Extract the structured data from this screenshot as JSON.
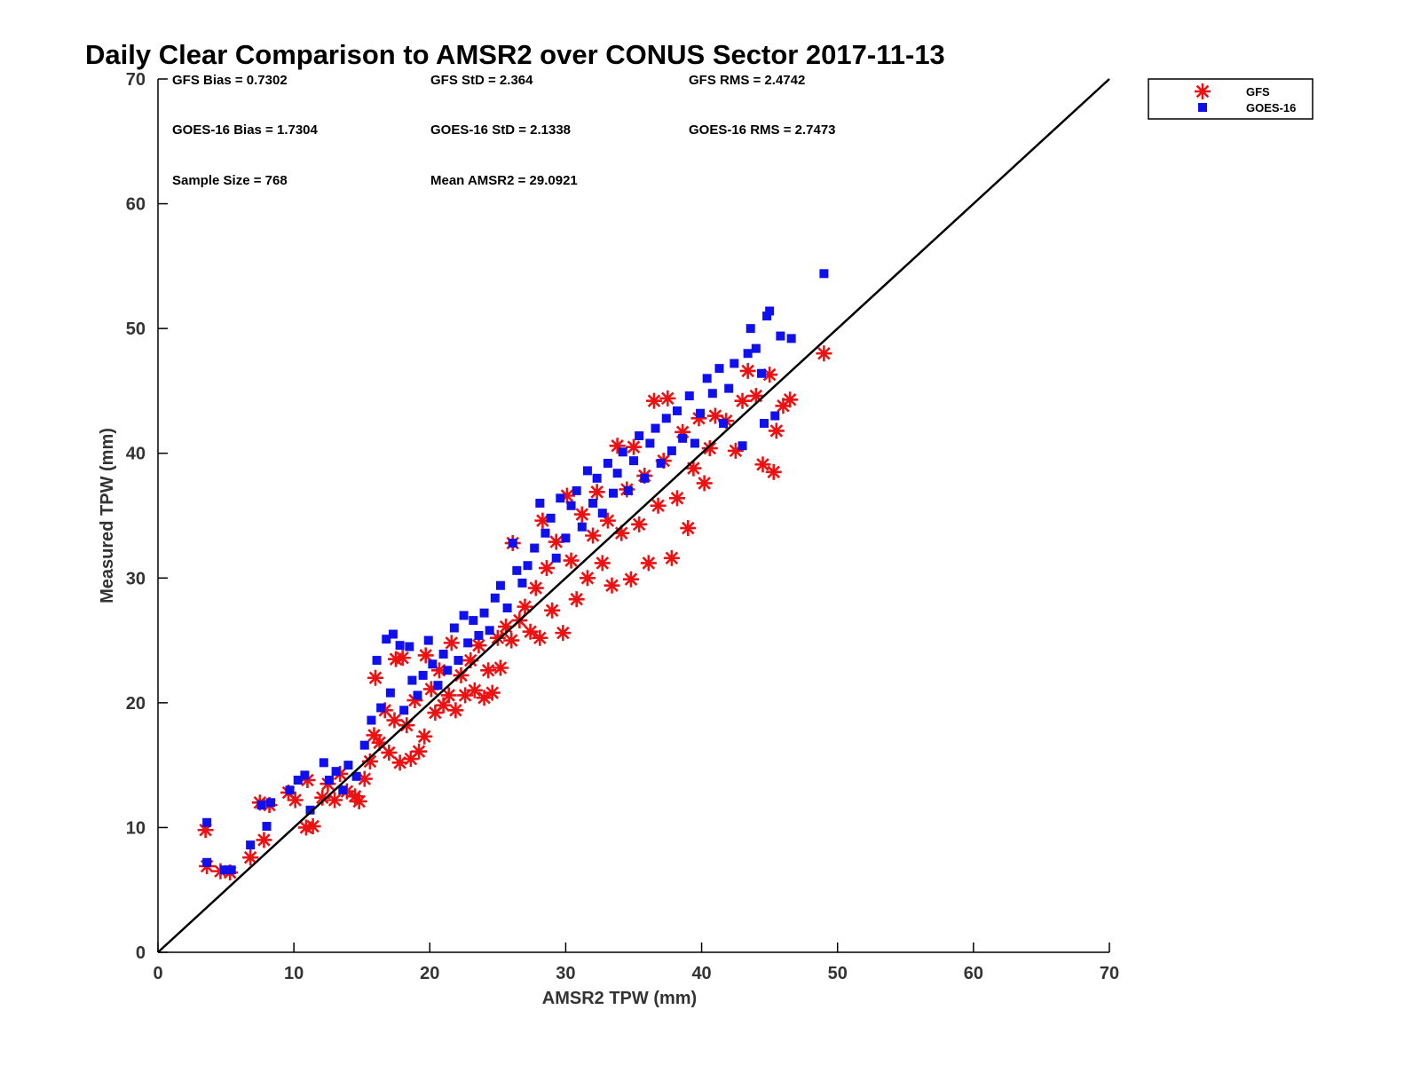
{
  "chart_data": {
    "type": "scatter",
    "title": "Daily Clear Comparison to AMSR2 over CONUS Sector 2017-11-13",
    "xlabel": "AMSR2 TPW (mm)",
    "ylabel": "Measured TPW (mm)",
    "xlim": [
      0,
      70
    ],
    "ylim": [
      0,
      70
    ],
    "xticks": [
      0,
      10,
      20,
      30,
      40,
      50,
      60,
      70
    ],
    "yticks": [
      0,
      10,
      20,
      30,
      40,
      50,
      60,
      70
    ],
    "grid": false,
    "legend_position": "outside top-right",
    "reference_line": {
      "from": [
        0,
        0
      ],
      "to": [
        70,
        70
      ],
      "color": "#000000"
    },
    "stats": [
      "GFS Bias = 0.7302",
      "GFS StD = 2.364",
      "GFS RMS = 2.4742",
      "GOES-16 Bias = 1.7304",
      "GOES-16 StD = 2.1338",
      "GOES-16 RMS = 2.7473",
      "Sample Size = 768",
      "Mean AMSR2 = 29.0921"
    ],
    "series": [
      {
        "name": "GFS",
        "marker": "asterisk",
        "color": "#ee1111",
        "points": [
          [
            3.5,
            9.8
          ],
          [
            3.6,
            6.9
          ],
          [
            4.6,
            6.5
          ],
          [
            5.3,
            6.4
          ],
          [
            6.8,
            7.6
          ],
          [
            7.8,
            9.0
          ],
          [
            7.5,
            12.0
          ],
          [
            8.2,
            11.8
          ],
          [
            9.6,
            12.8
          ],
          [
            10.1,
            12.2
          ],
          [
            10.9,
            10.0
          ],
          [
            11.0,
            13.8
          ],
          [
            11.4,
            10.1
          ],
          [
            12.1,
            12.4
          ],
          [
            12.5,
            13.5
          ],
          [
            13.0,
            12.2
          ],
          [
            13.4,
            14.3
          ],
          [
            13.9,
            12.9
          ],
          [
            14.5,
            12.5
          ],
          [
            14.8,
            12.1
          ],
          [
            15.2,
            13.9
          ],
          [
            15.6,
            15.3
          ],
          [
            15.9,
            17.4
          ],
          [
            16.0,
            22.0
          ],
          [
            16.3,
            16.8
          ],
          [
            16.7,
            19.4
          ],
          [
            17.0,
            16.0
          ],
          [
            17.4,
            18.6
          ],
          [
            17.5,
            23.5
          ],
          [
            17.8,
            15.2
          ],
          [
            18.0,
            23.6
          ],
          [
            18.3,
            18.2
          ],
          [
            18.6,
            15.5
          ],
          [
            18.9,
            20.2
          ],
          [
            19.2,
            16.1
          ],
          [
            19.6,
            17.3
          ],
          [
            19.7,
            23.8
          ],
          [
            20.1,
            21.1
          ],
          [
            20.4,
            19.2
          ],
          [
            20.7,
            22.6
          ],
          [
            21.0,
            19.8
          ],
          [
            21.4,
            20.6
          ],
          [
            21.6,
            24.8
          ],
          [
            21.9,
            19.4
          ],
          [
            22.3,
            22.2
          ],
          [
            22.6,
            20.6
          ],
          [
            23.0,
            23.4
          ],
          [
            23.3,
            21.0
          ],
          [
            23.6,
            24.6
          ],
          [
            24.0,
            20.4
          ],
          [
            24.3,
            22.6
          ],
          [
            24.6,
            20.8
          ],
          [
            25.0,
            25.2
          ],
          [
            25.2,
            22.8
          ],
          [
            25.6,
            26.1
          ],
          [
            26.0,
            25.0
          ],
          [
            26.1,
            32.8
          ],
          [
            26.6,
            26.6
          ],
          [
            27.0,
            27.7
          ],
          [
            27.4,
            25.7
          ],
          [
            27.8,
            29.2
          ],
          [
            28.1,
            25.2
          ],
          [
            28.3,
            34.6
          ],
          [
            28.6,
            30.8
          ],
          [
            29.0,
            27.4
          ],
          [
            29.3,
            32.9
          ],
          [
            29.8,
            25.6
          ],
          [
            30.1,
            36.6
          ],
          [
            30.4,
            31.4
          ],
          [
            30.8,
            28.3
          ],
          [
            31.2,
            35.1
          ],
          [
            31.6,
            30.0
          ],
          [
            32.0,
            33.4
          ],
          [
            32.3,
            36.9
          ],
          [
            32.7,
            31.2
          ],
          [
            33.1,
            34.6
          ],
          [
            33.4,
            29.4
          ],
          [
            33.8,
            40.6
          ],
          [
            34.1,
            33.6
          ],
          [
            34.5,
            37.1
          ],
          [
            34.8,
            29.9
          ],
          [
            35.0,
            40.5
          ],
          [
            35.4,
            34.3
          ],
          [
            35.8,
            38.2
          ],
          [
            36.1,
            31.2
          ],
          [
            36.5,
            44.2
          ],
          [
            36.8,
            35.8
          ],
          [
            37.2,
            39.4
          ],
          [
            37.5,
            44.4
          ],
          [
            37.8,
            31.6
          ],
          [
            38.2,
            36.4
          ],
          [
            38.6,
            41.7
          ],
          [
            39.0,
            34.0
          ],
          [
            39.4,
            38.8
          ],
          [
            39.8,
            42.8
          ],
          [
            40.2,
            37.6
          ],
          [
            40.6,
            40.4
          ],
          [
            41.0,
            43.0
          ],
          [
            41.8,
            42.6
          ],
          [
            42.5,
            40.2
          ],
          [
            43.0,
            44.2
          ],
          [
            43.4,
            46.6
          ],
          [
            44.0,
            44.6
          ],
          [
            44.5,
            39.1
          ],
          [
            45.0,
            46.3
          ],
          [
            45.3,
            38.5
          ],
          [
            45.5,
            41.8
          ],
          [
            46.0,
            43.8
          ],
          [
            46.5,
            44.3
          ],
          [
            49.0,
            48.0
          ]
        ]
      },
      {
        "name": "GOES-16",
        "marker": "square",
        "color": "#1010ee",
        "points": [
          [
            3.6,
            10.4
          ],
          [
            3.6,
            7.2
          ],
          [
            4.9,
            6.6
          ],
          [
            5.4,
            6.6
          ],
          [
            6.8,
            8.6
          ],
          [
            7.6,
            11.8
          ],
          [
            8.0,
            10.1
          ],
          [
            8.3,
            12.0
          ],
          [
            9.7,
            13.0
          ],
          [
            10.3,
            13.8
          ],
          [
            10.8,
            14.2
          ],
          [
            11.2,
            11.4
          ],
          [
            12.2,
            15.2
          ],
          [
            12.6,
            13.8
          ],
          [
            13.1,
            14.5
          ],
          [
            13.6,
            13.0
          ],
          [
            14.0,
            15.0
          ],
          [
            14.6,
            14.1
          ],
          [
            15.2,
            16.6
          ],
          [
            15.7,
            18.6
          ],
          [
            16.1,
            23.4
          ],
          [
            16.4,
            19.6
          ],
          [
            16.8,
            25.1
          ],
          [
            17.1,
            20.8
          ],
          [
            17.3,
            25.5
          ],
          [
            17.8,
            24.6
          ],
          [
            18.1,
            19.4
          ],
          [
            18.5,
            24.5
          ],
          [
            18.7,
            21.8
          ],
          [
            19.1,
            20.6
          ],
          [
            19.5,
            22.2
          ],
          [
            19.9,
            25.0
          ],
          [
            20.2,
            23.1
          ],
          [
            20.6,
            21.4
          ],
          [
            21.0,
            23.9
          ],
          [
            21.3,
            22.6
          ],
          [
            21.8,
            26.0
          ],
          [
            22.1,
            23.4
          ],
          [
            22.5,
            27.0
          ],
          [
            22.8,
            24.8
          ],
          [
            23.2,
            26.6
          ],
          [
            23.6,
            25.4
          ],
          [
            24.0,
            27.2
          ],
          [
            24.4,
            25.8
          ],
          [
            24.8,
            28.4
          ],
          [
            25.2,
            29.4
          ],
          [
            25.7,
            27.6
          ],
          [
            26.1,
            32.8
          ],
          [
            26.4,
            30.6
          ],
          [
            26.8,
            29.6
          ],
          [
            27.2,
            31.0
          ],
          [
            27.7,
            32.4
          ],
          [
            28.1,
            36.0
          ],
          [
            28.5,
            33.6
          ],
          [
            28.9,
            34.8
          ],
          [
            29.3,
            31.6
          ],
          [
            29.6,
            36.4
          ],
          [
            30.0,
            33.2
          ],
          [
            30.4,
            35.8
          ],
          [
            30.8,
            37.0
          ],
          [
            31.2,
            34.1
          ],
          [
            31.6,
            38.6
          ],
          [
            32.0,
            36.0
          ],
          [
            32.3,
            38.0
          ],
          [
            32.7,
            35.2
          ],
          [
            33.1,
            39.2
          ],
          [
            33.5,
            36.8
          ],
          [
            33.8,
            38.4
          ],
          [
            34.2,
            40.1
          ],
          [
            34.6,
            37.0
          ],
          [
            35.0,
            39.4
          ],
          [
            35.4,
            41.4
          ],
          [
            35.8,
            38.0
          ],
          [
            36.2,
            40.8
          ],
          [
            36.6,
            42.0
          ],
          [
            37.0,
            39.2
          ],
          [
            37.4,
            42.8
          ],
          [
            37.8,
            40.2
          ],
          [
            38.2,
            43.4
          ],
          [
            38.6,
            41.2
          ],
          [
            39.1,
            44.6
          ],
          [
            39.5,
            40.8
          ],
          [
            39.9,
            43.2
          ],
          [
            40.4,
            46.0
          ],
          [
            40.8,
            44.8
          ],
          [
            41.3,
            46.8
          ],
          [
            41.6,
            42.4
          ],
          [
            42.0,
            45.2
          ],
          [
            42.4,
            47.2
          ],
          [
            43.0,
            40.6
          ],
          [
            43.4,
            48.0
          ],
          [
            43.6,
            50.0
          ],
          [
            44.0,
            48.4
          ],
          [
            44.4,
            46.4
          ],
          [
            44.6,
            42.4
          ],
          [
            44.8,
            51.0
          ],
          [
            45.0,
            51.4
          ],
          [
            45.4,
            43.0
          ],
          [
            45.8,
            49.4
          ],
          [
            46.6,
            49.2
          ],
          [
            49.0,
            54.4
          ]
        ]
      }
    ]
  }
}
